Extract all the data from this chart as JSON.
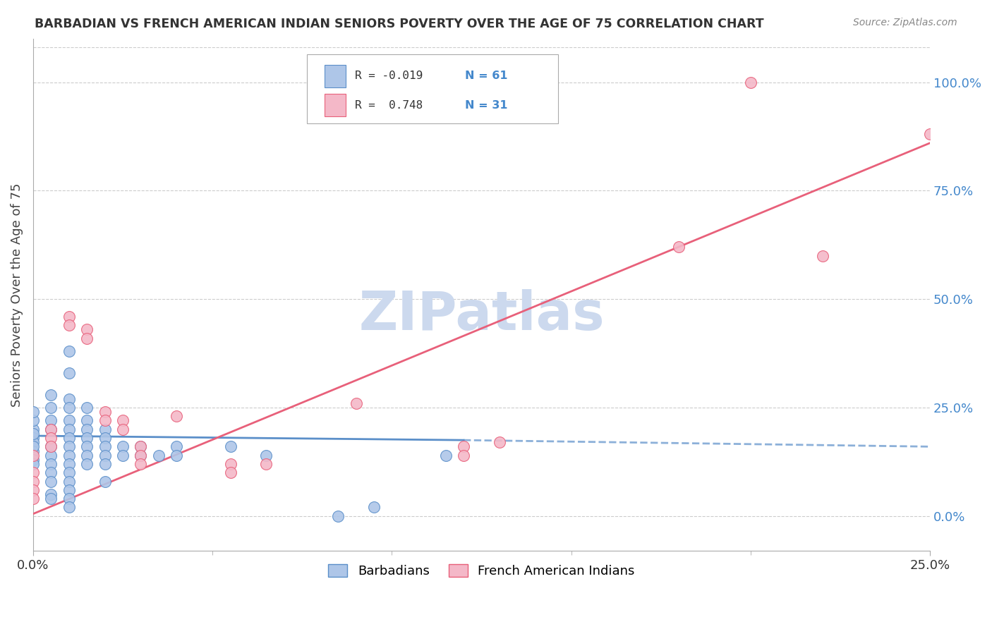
{
  "title": "BARBADIAN VS FRENCH AMERICAN INDIAN SENIORS POVERTY OVER THE AGE OF 75 CORRELATION CHART",
  "source": "Source: ZipAtlas.com",
  "ylabel_label": "Seniors Poverty Over the Age of 75",
  "xlim": [
    0.0,
    0.25
  ],
  "ylim": [
    -0.08,
    1.1
  ],
  "ytick_vals": [
    0.0,
    0.25,
    0.5,
    0.75,
    1.0
  ],
  "ytick_labels": [
    "0.0%",
    "25.0%",
    "50.0%",
    "75.0%",
    "100.0%"
  ],
  "xtick_vals": [
    0.0,
    0.25
  ],
  "xtick_labels": [
    "0.0%",
    "25.0%"
  ],
  "watermark": "ZIPatlas",
  "watermark_color": "#ccd9ee",
  "barbadian_color": "#aec6e8",
  "barbadian_edge": "#5b8fc9",
  "french_color": "#f4b8c8",
  "french_edge": "#e8607a",
  "grid_color": "#cccccc",
  "right_axis_color": "#4488cc",
  "legend_r1_text": "R = -0.019",
  "legend_r1_n": "N = 61",
  "legend_r2_text": "R =  0.748",
  "legend_r2_n": "N = 31",
  "barbadian_dots": [
    [
      0.0,
      0.2
    ],
    [
      0.0,
      0.22
    ],
    [
      0.0,
      0.18
    ],
    [
      0.0,
      0.17
    ],
    [
      0.0,
      0.24
    ],
    [
      0.0,
      0.15
    ],
    [
      0.0,
      0.16
    ],
    [
      0.0,
      0.13
    ],
    [
      0.0,
      0.12
    ],
    [
      0.0,
      0.19
    ],
    [
      0.005,
      0.25
    ],
    [
      0.005,
      0.28
    ],
    [
      0.005,
      0.22
    ],
    [
      0.005,
      0.2
    ],
    [
      0.005,
      0.16
    ],
    [
      0.005,
      0.14
    ],
    [
      0.005,
      0.12
    ],
    [
      0.005,
      0.1
    ],
    [
      0.005,
      0.08
    ],
    [
      0.005,
      0.05
    ],
    [
      0.005,
      0.04
    ],
    [
      0.01,
      0.38
    ],
    [
      0.01,
      0.33
    ],
    [
      0.01,
      0.27
    ],
    [
      0.01,
      0.25
    ],
    [
      0.01,
      0.22
    ],
    [
      0.01,
      0.2
    ],
    [
      0.01,
      0.18
    ],
    [
      0.01,
      0.16
    ],
    [
      0.01,
      0.14
    ],
    [
      0.01,
      0.12
    ],
    [
      0.01,
      0.1
    ],
    [
      0.01,
      0.08
    ],
    [
      0.01,
      0.06
    ],
    [
      0.01,
      0.04
    ],
    [
      0.01,
      0.02
    ],
    [
      0.015,
      0.25
    ],
    [
      0.015,
      0.22
    ],
    [
      0.015,
      0.2
    ],
    [
      0.015,
      0.18
    ],
    [
      0.015,
      0.16
    ],
    [
      0.015,
      0.14
    ],
    [
      0.015,
      0.12
    ],
    [
      0.02,
      0.2
    ],
    [
      0.02,
      0.18
    ],
    [
      0.02,
      0.16
    ],
    [
      0.02,
      0.14
    ],
    [
      0.02,
      0.12
    ],
    [
      0.02,
      0.08
    ],
    [
      0.025,
      0.16
    ],
    [
      0.025,
      0.14
    ],
    [
      0.03,
      0.16
    ],
    [
      0.03,
      0.14
    ],
    [
      0.035,
      0.14
    ],
    [
      0.04,
      0.16
    ],
    [
      0.04,
      0.14
    ],
    [
      0.055,
      0.16
    ],
    [
      0.065,
      0.14
    ],
    [
      0.085,
      0.0
    ],
    [
      0.095,
      0.02
    ],
    [
      0.115,
      0.14
    ]
  ],
  "french_dots": [
    [
      0.0,
      0.14
    ],
    [
      0.0,
      0.1
    ],
    [
      0.0,
      0.08
    ],
    [
      0.0,
      0.06
    ],
    [
      0.0,
      0.04
    ],
    [
      0.005,
      0.2
    ],
    [
      0.005,
      0.18
    ],
    [
      0.005,
      0.16
    ],
    [
      0.01,
      0.46
    ],
    [
      0.01,
      0.44
    ],
    [
      0.015,
      0.43
    ],
    [
      0.015,
      0.41
    ],
    [
      0.02,
      0.24
    ],
    [
      0.02,
      0.22
    ],
    [
      0.025,
      0.22
    ],
    [
      0.025,
      0.2
    ],
    [
      0.03,
      0.16
    ],
    [
      0.03,
      0.14
    ],
    [
      0.03,
      0.12
    ],
    [
      0.04,
      0.23
    ],
    [
      0.055,
      0.12
    ],
    [
      0.055,
      0.1
    ],
    [
      0.065,
      0.12
    ],
    [
      0.09,
      0.26
    ],
    [
      0.12,
      0.16
    ],
    [
      0.12,
      0.14
    ],
    [
      0.13,
      0.17
    ],
    [
      0.18,
      0.62
    ],
    [
      0.2,
      1.0
    ],
    [
      0.22,
      0.6
    ],
    [
      0.25,
      0.88
    ]
  ],
  "barb_line": {
    "x0": 0.0,
    "y0": 0.185,
    "x1": 0.12,
    "y1": 0.175
  },
  "barb_dashed_line": {
    "x0": 0.12,
    "y0": 0.175,
    "x1": 0.25,
    "y1": 0.16
  },
  "french_line": {
    "x0": 0.0,
    "y0": 0.005,
    "x1": 0.25,
    "y1": 0.86
  }
}
